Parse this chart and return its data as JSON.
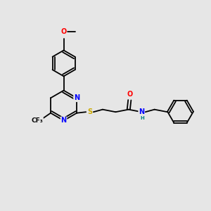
{
  "bg_color": "#e6e6e6",
  "bond_color": "#000000",
  "atom_colors": {
    "N": "#0000ff",
    "O": "#ff0000",
    "S": "#ccaa00",
    "F": "#000000",
    "H": "#008080",
    "C": "#000000"
  },
  "font_size": 7.0,
  "figsize": [
    3.0,
    3.0
  ],
  "dpi": 100
}
